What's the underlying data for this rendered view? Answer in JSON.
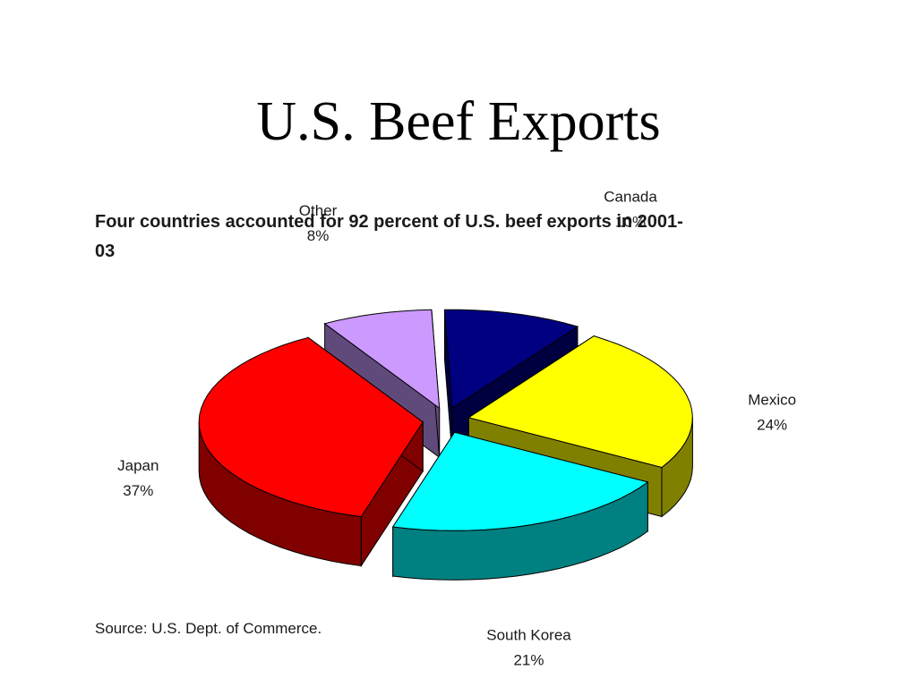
{
  "slide": {
    "title": "U.S. Beef Exports",
    "source": "Source: U.S. Dept. of Commerce."
  },
  "chart_data": {
    "type": "pie",
    "subtitle": "Four countries accounted for 92 percent of U.S. beef exports in 2001-03",
    "three_d": true,
    "exploded": true,
    "unit": "%",
    "slices": [
      {
        "label": "Canada",
        "value": 10,
        "value_label": "10%",
        "top_color": "#000080",
        "side_color": "#000040"
      },
      {
        "label": "Mexico",
        "value": 24,
        "value_label": "24%",
        "top_color": "#ffff00",
        "side_color": "#808000"
      },
      {
        "label": "South Korea",
        "value": 21,
        "value_label": "21%",
        "top_color": "#00ffff",
        "side_color": "#008080"
      },
      {
        "label": "Japan",
        "value": 37,
        "value_label": "37%",
        "top_color": "#ff0000",
        "side_color": "#800000"
      },
      {
        "label": "Other",
        "value": 8,
        "value_label": "8%",
        "top_color": "#cc99ff",
        "side_color": "#604a7b"
      }
    ]
  }
}
